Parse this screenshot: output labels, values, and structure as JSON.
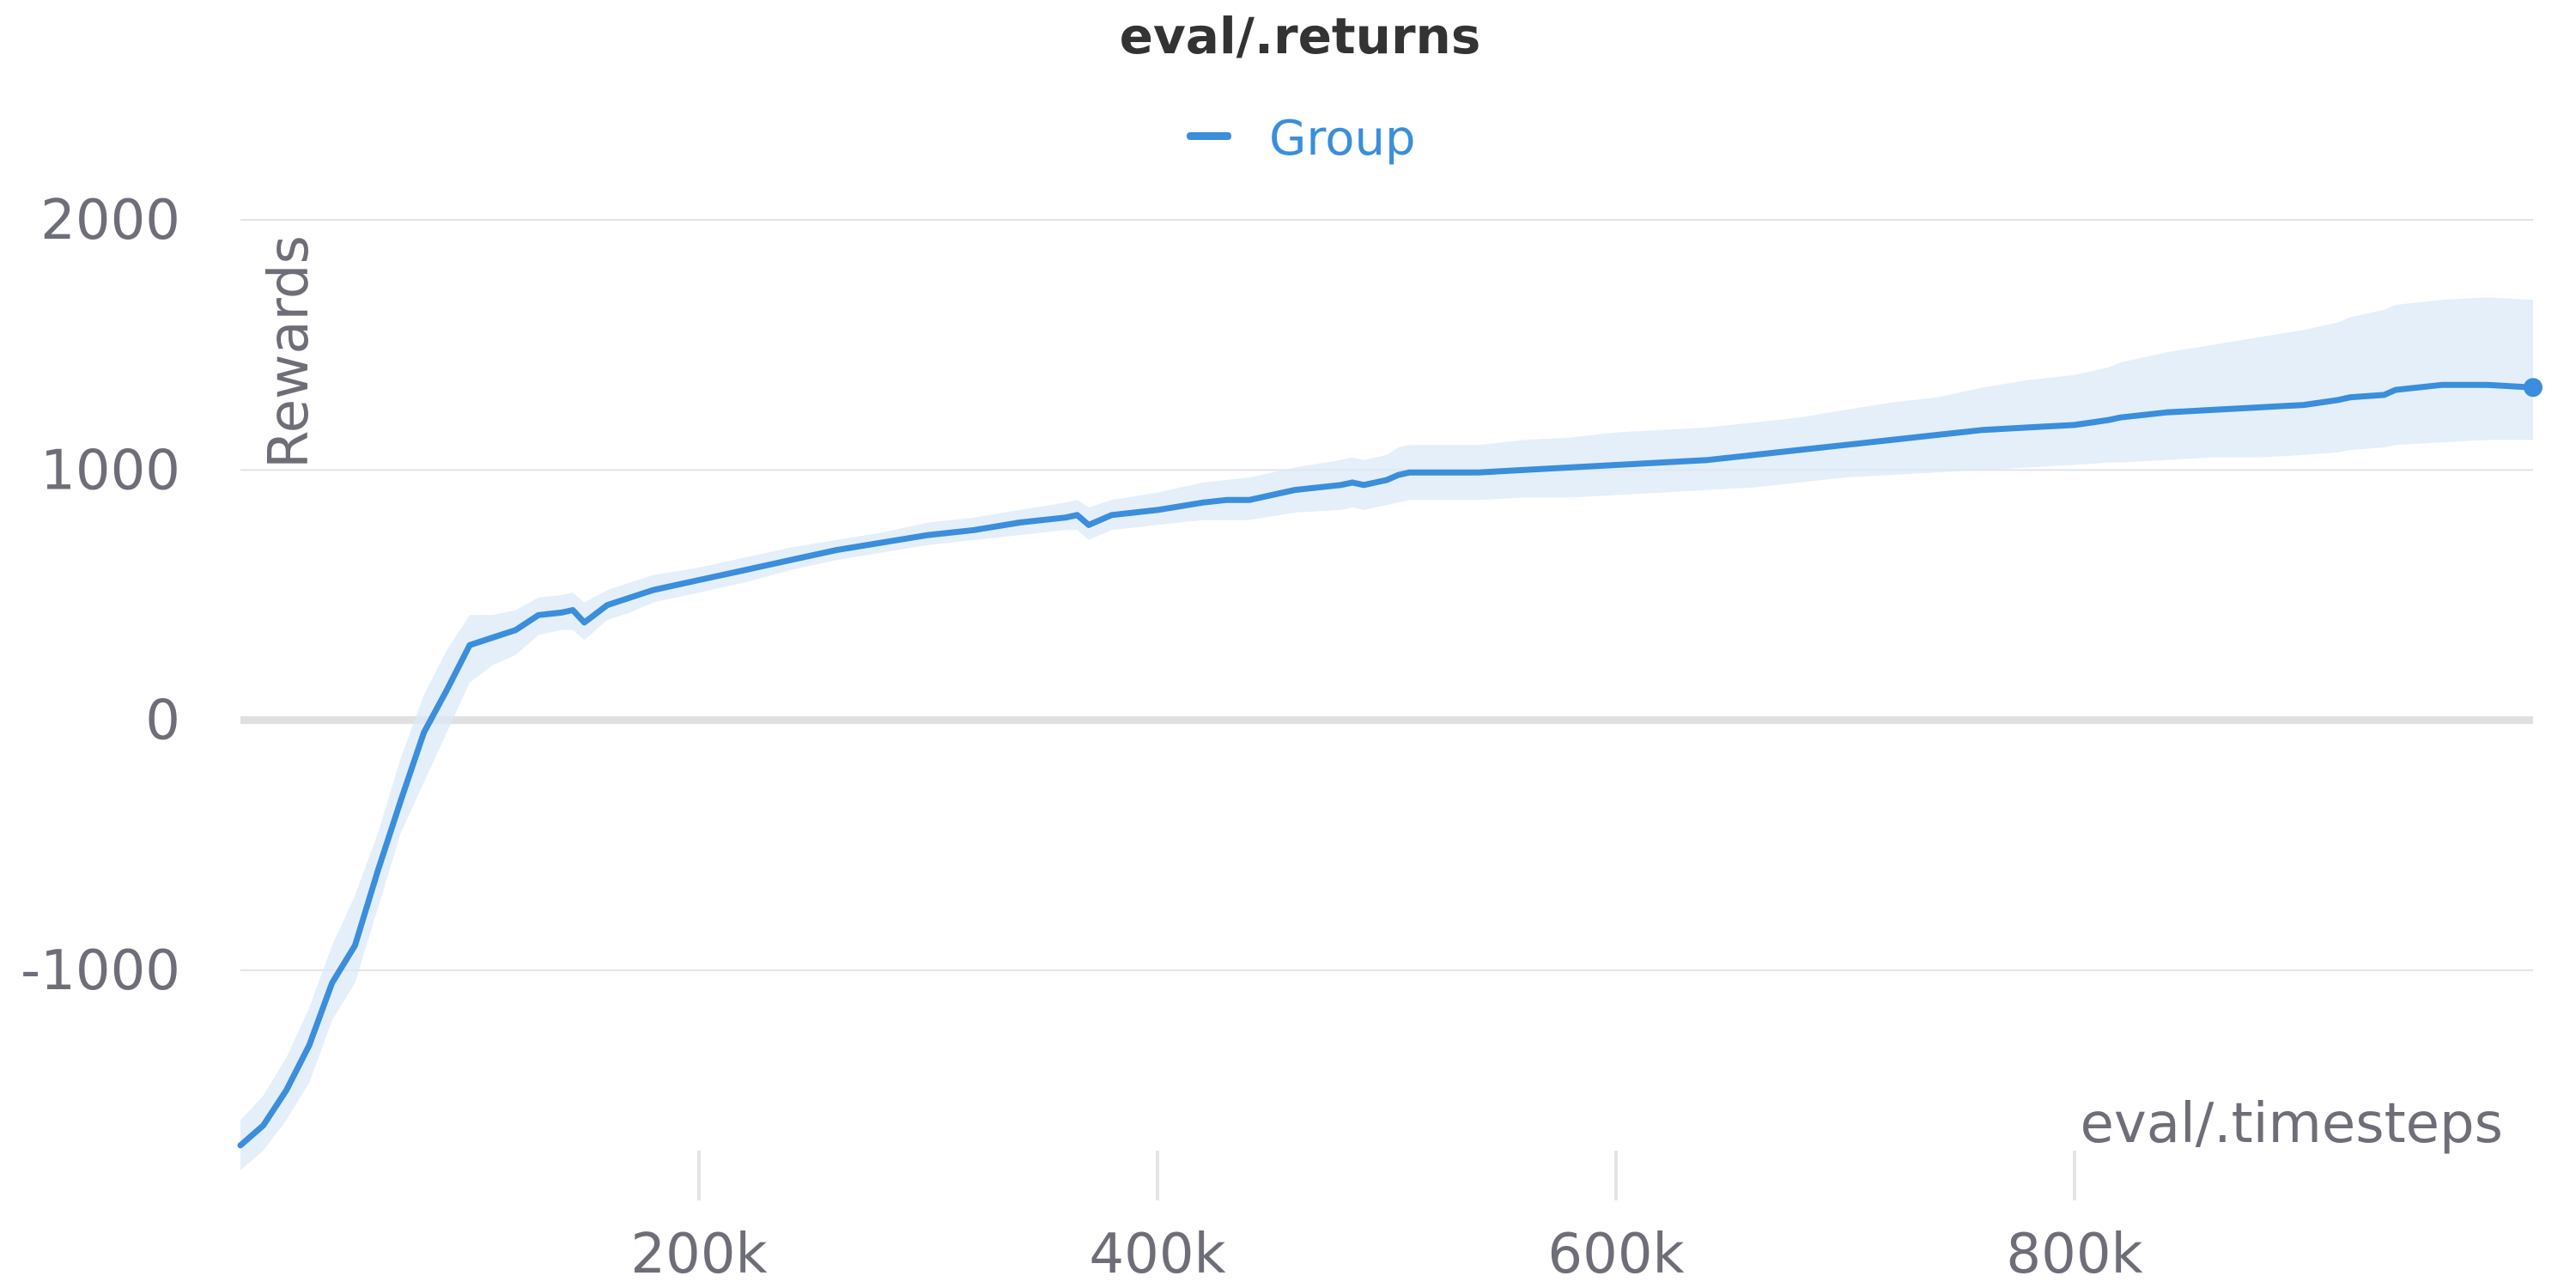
{
  "chart_data": {
    "type": "line",
    "title": "eval/.returns",
    "xlabel": "eval/.timesteps",
    "ylabel": "Rewards",
    "xlim": [
      0,
      1000000
    ],
    "ylim": [
      -1800,
      2000
    ],
    "x_ticks": [
      200000,
      400000,
      600000,
      800000
    ],
    "x_tick_labels": [
      "200k",
      "400k",
      "600k",
      "800k"
    ],
    "y_ticks": [
      -1000,
      0,
      1000,
      2000
    ],
    "y_tick_labels": [
      "-1000",
      "0",
      "1000",
      "2000"
    ],
    "grid": true,
    "legend": {
      "position": "top-center",
      "entries": [
        "Group"
      ]
    },
    "colors": {
      "line": "#3a8edb",
      "band": "#dbeaf8",
      "grid": "#e3e3e8",
      "zero_line": "#e0e0e0",
      "text": "#6e6e78",
      "title": "#333333"
    },
    "series": [
      {
        "name": "Group",
        "x": [
          0,
          10000,
          20000,
          30000,
          40000,
          50000,
          60000,
          70000,
          80000,
          90000,
          100000,
          110000,
          120000,
          130000,
          140000,
          145000,
          150000,
          160000,
          170000,
          180000,
          200000,
          220000,
          240000,
          260000,
          280000,
          300000,
          320000,
          340000,
          360000,
          365000,
          370000,
          380000,
          400000,
          420000,
          430000,
          440000,
          460000,
          480000,
          485000,
          490000,
          500000,
          505000,
          510000,
          540000,
          560000,
          580000,
          600000,
          620000,
          640000,
          660000,
          680000,
          700000,
          720000,
          740000,
          760000,
          780000,
          800000,
          815000,
          820000,
          840000,
          860000,
          880000,
          900000,
          915000,
          920000,
          935000,
          940000,
          960000,
          980000,
          1000000
        ],
        "y": [
          -1700,
          -1620,
          -1480,
          -1300,
          -1050,
          -900,
          -600,
          -320,
          -50,
          120,
          300,
          330,
          360,
          420,
          430,
          440,
          390,
          460,
          490,
          520,
          560,
          600,
          640,
          680,
          710,
          740,
          760,
          790,
          810,
          820,
          780,
          820,
          840,
          870,
          880,
          880,
          920,
          940,
          950,
          940,
          960,
          980,
          990,
          990,
          1000,
          1010,
          1020,
          1030,
          1040,
          1060,
          1080,
          1100,
          1120,
          1140,
          1160,
          1170,
          1180,
          1200,
          1210,
          1230,
          1240,
          1250,
          1260,
          1280,
          1290,
          1300,
          1320,
          1340,
          1340,
          1330
        ],
        "band_lower": [
          -1800,
          -1720,
          -1600,
          -1450,
          -1200,
          -1050,
          -750,
          -450,
          -250,
          -50,
          150,
          220,
          260,
          340,
          360,
          360,
          320,
          400,
          430,
          470,
          510,
          550,
          600,
          640,
          670,
          700,
          720,
          740,
          760,
          760,
          720,
          760,
          780,
          800,
          800,
          800,
          830,
          840,
          850,
          840,
          860,
          870,
          880,
          880,
          890,
          890,
          900,
          910,
          920,
          930,
          950,
          970,
          980,
          990,
          1000,
          1010,
          1020,
          1030,
          1030,
          1040,
          1050,
          1050,
          1060,
          1070,
          1080,
          1090,
          1100,
          1110,
          1120,
          1120
        ],
        "band_upper": [
          -1600,
          -1500,
          -1350,
          -1150,
          -900,
          -700,
          -450,
          -150,
          100,
          280,
          420,
          420,
          440,
          490,
          500,
          510,
          470,
          520,
          550,
          580,
          610,
          650,
          690,
          720,
          750,
          790,
          810,
          840,
          870,
          880,
          850,
          880,
          910,
          950,
          960,
          970,
          1010,
          1040,
          1050,
          1040,
          1060,
          1090,
          1100,
          1100,
          1120,
          1130,
          1150,
          1160,
          1170,
          1190,
          1210,
          1240,
          1270,
          1290,
          1330,
          1360,
          1380,
          1410,
          1430,
          1470,
          1500,
          1530,
          1560,
          1590,
          1610,
          1640,
          1660,
          1680,
          1690,
          1680
        ]
      }
    ]
  }
}
